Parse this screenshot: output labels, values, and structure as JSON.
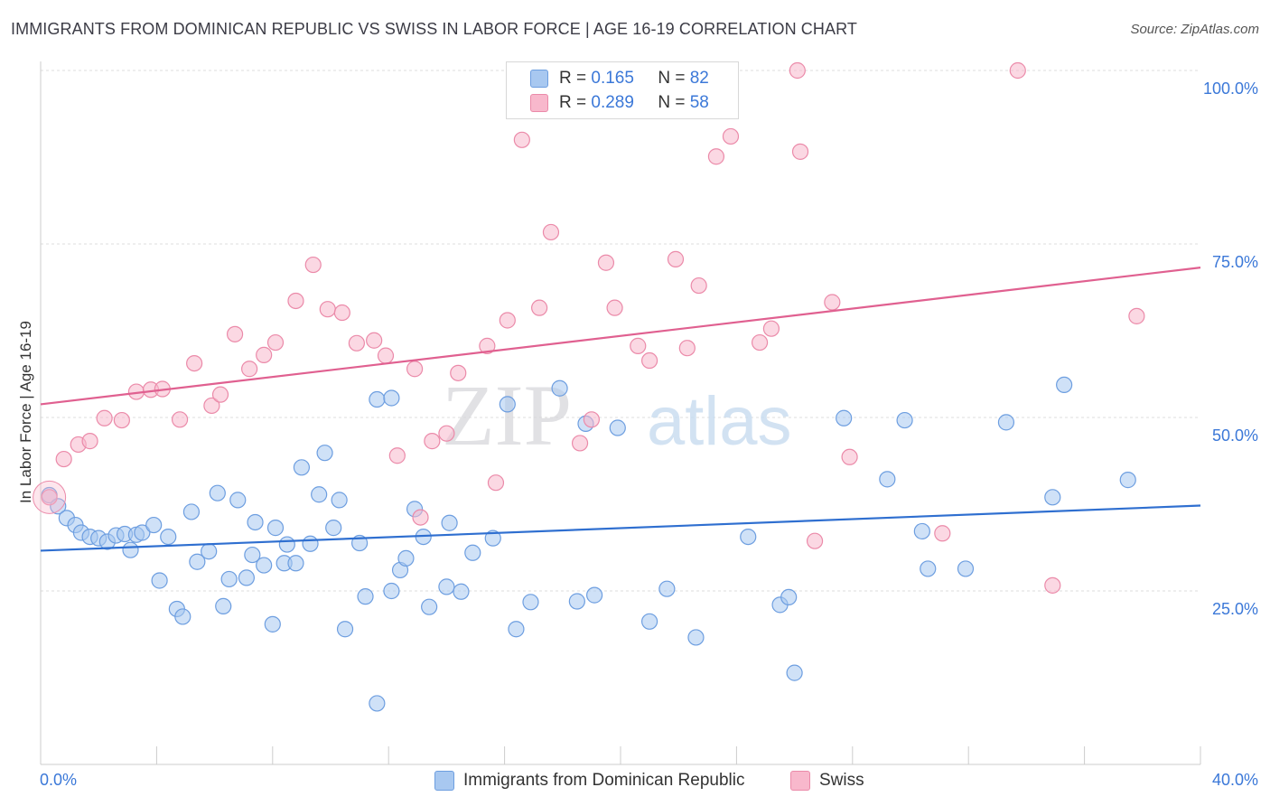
{
  "title": "IMMIGRANTS FROM DOMINICAN REPUBLIC VS SWISS IN LABOR FORCE | AGE 16-19 CORRELATION CHART",
  "source": "Source: ZipAtlas.com",
  "watermark": {
    "zip": "ZIP",
    "atlas": "atlas"
  },
  "legend_top": {
    "rows": [
      {
        "r_label": "R =",
        "r_value": "0.165",
        "n_label": "N =",
        "n_value": "82",
        "color": "#a8c8f0"
      },
      {
        "r_label": "R =",
        "r_value": "0.289",
        "n_label": "N =",
        "n_value": "58",
        "color": "#f8b8cc"
      }
    ]
  },
  "chart_data": {
    "type": "scatter",
    "title": "IMMIGRANTS FROM DOMINICAN REPUBLIC VS SWISS IN LABOR FORCE | AGE 16-19 CORRELATION CHART",
    "xlabel": "",
    "ylabel": "In Labor Force | Age 16-19",
    "xlim": [
      0,
      40
    ],
    "ylim": [
      0,
      100
    ],
    "x_tick_labels": [
      "0.0%",
      "40.0%"
    ],
    "y_tick_labels": [
      "25.0%",
      "50.0%",
      "75.0%",
      "100.0%"
    ],
    "y_ticks": [
      25,
      50,
      75,
      100
    ],
    "grid": true,
    "legend_position": "bottom",
    "series": [
      {
        "name": "Immigrants from Dominican Republic",
        "color": "#a8c8f0",
        "line_color": "#2f6fd0",
        "trend": {
          "x": [
            0,
            40
          ],
          "y": [
            30.8,
            37.3
          ]
        },
        "points": [
          [
            0.3,
            38.8
          ],
          [
            0.6,
            37.2
          ],
          [
            0.9,
            35.5
          ],
          [
            1.2,
            34.5
          ],
          [
            1.4,
            33.4
          ],
          [
            1.7,
            32.8
          ],
          [
            2.0,
            32.6
          ],
          [
            2.3,
            32.1
          ],
          [
            2.6,
            33.0
          ],
          [
            2.9,
            33.2
          ],
          [
            3.1,
            30.9
          ],
          [
            3.3,
            33.1
          ],
          [
            3.5,
            33.4
          ],
          [
            3.9,
            34.5
          ],
          [
            4.1,
            26.5
          ],
          [
            4.4,
            32.8
          ],
          [
            4.7,
            22.4
          ],
          [
            4.9,
            21.3
          ],
          [
            5.2,
            36.4
          ],
          [
            5.4,
            29.2
          ],
          [
            5.8,
            30.7
          ],
          [
            6.1,
            39.1
          ],
          [
            6.3,
            22.8
          ],
          [
            6.5,
            26.7
          ],
          [
            6.8,
            38.1
          ],
          [
            7.1,
            26.9
          ],
          [
            7.3,
            30.2
          ],
          [
            7.4,
            34.9
          ],
          [
            7.7,
            28.7
          ],
          [
            8.1,
            34.1
          ],
          [
            8.4,
            29.0
          ],
          [
            8.5,
            31.7
          ],
          [
            8.8,
            29.0
          ],
          [
            8.0,
            20.2
          ],
          [
            9.0,
            42.8
          ],
          [
            9.3,
            31.8
          ],
          [
            9.6,
            38.9
          ],
          [
            9.8,
            44.9
          ],
          [
            10.1,
            34.1
          ],
          [
            10.3,
            38.1
          ],
          [
            10.5,
            19.5
          ],
          [
            11.0,
            31.9
          ],
          [
            11.2,
            24.2
          ],
          [
            11.6,
            52.6
          ],
          [
            11.6,
            8.8
          ],
          [
            12.1,
            52.8
          ],
          [
            12.1,
            25.0
          ],
          [
            12.4,
            28.0
          ],
          [
            12.6,
            29.7
          ],
          [
            12.9,
            36.8
          ],
          [
            13.2,
            32.8
          ],
          [
            13.4,
            22.7
          ],
          [
            14.0,
            25.6
          ],
          [
            14.1,
            34.8
          ],
          [
            14.5,
            24.9
          ],
          [
            14.9,
            30.5
          ],
          [
            15.6,
            32.6
          ],
          [
            16.1,
            51.9
          ],
          [
            16.4,
            19.5
          ],
          [
            16.9,
            23.4
          ],
          [
            17.9,
            54.2
          ],
          [
            18.5,
            23.5
          ],
          [
            18.8,
            49.1
          ],
          [
            19.1,
            24.4
          ],
          [
            19.9,
            48.5
          ],
          [
            21.0,
            20.6
          ],
          [
            21.6,
            25.3
          ],
          [
            22.6,
            18.3
          ],
          [
            24.4,
            32.8
          ],
          [
            25.5,
            23.0
          ],
          [
            25.8,
            24.1
          ],
          [
            26.0,
            13.2
          ],
          [
            27.7,
            49.9
          ],
          [
            29.2,
            41.1
          ],
          [
            29.8,
            49.6
          ],
          [
            30.4,
            33.6
          ],
          [
            30.6,
            28.2
          ],
          [
            31.9,
            28.2
          ],
          [
            33.3,
            49.3
          ],
          [
            34.9,
            38.5
          ],
          [
            35.3,
            54.7
          ],
          [
            37.5,
            41.0
          ]
        ]
      },
      {
        "name": "Swiss",
        "color": "#f8b8cc",
        "line_color": "#e06090",
        "trend": {
          "x": [
            0,
            40
          ],
          "y": [
            51.9,
            71.6
          ]
        },
        "points": [
          [
            0.3,
            38.5
          ],
          [
            0.8,
            44.0
          ],
          [
            1.3,
            46.1
          ],
          [
            1.7,
            46.6
          ],
          [
            2.2,
            49.9
          ],
          [
            2.8,
            49.6
          ],
          [
            3.3,
            53.7
          ],
          [
            3.8,
            54.0
          ],
          [
            4.2,
            54.1
          ],
          [
            4.8,
            49.7
          ],
          [
            5.3,
            57.8
          ],
          [
            5.9,
            51.7
          ],
          [
            6.2,
            53.3
          ],
          [
            6.7,
            62.0
          ],
          [
            7.2,
            57.0
          ],
          [
            7.7,
            59.0
          ],
          [
            8.1,
            60.8
          ],
          [
            8.8,
            66.8
          ],
          [
            9.4,
            72.0
          ],
          [
            9.9,
            65.6
          ],
          [
            10.4,
            65.1
          ],
          [
            10.9,
            60.7
          ],
          [
            11.5,
            61.1
          ],
          [
            11.9,
            58.9
          ],
          [
            12.3,
            44.5
          ],
          [
            12.9,
            57.0
          ],
          [
            13.1,
            35.6
          ],
          [
            13.5,
            46.6
          ],
          [
            14.0,
            47.7
          ],
          [
            14.4,
            56.4
          ],
          [
            15.4,
            60.3
          ],
          [
            15.7,
            40.6
          ],
          [
            16.1,
            64.0
          ],
          [
            16.6,
            90.0
          ],
          [
            17.2,
            65.8
          ],
          [
            17.6,
            76.7
          ],
          [
            18.6,
            46.3
          ],
          [
            19.0,
            49.7
          ],
          [
            19.5,
            72.3
          ],
          [
            19.8,
            65.8
          ],
          [
            20.6,
            60.3
          ],
          [
            21.0,
            58.2
          ],
          [
            21.9,
            72.8
          ],
          [
            22.3,
            60.0
          ],
          [
            22.7,
            69.0
          ],
          [
            23.3,
            87.6
          ],
          [
            23.8,
            90.5
          ],
          [
            24.8,
            60.8
          ],
          [
            25.2,
            62.8
          ],
          [
            26.1,
            100.0
          ],
          [
            26.2,
            88.3
          ],
          [
            26.7,
            32.2
          ],
          [
            27.3,
            66.6
          ],
          [
            27.9,
            44.3
          ],
          [
            31.1,
            33.3
          ],
          [
            33.7,
            100.0
          ],
          [
            34.9,
            25.8
          ],
          [
            37.8,
            64.6
          ]
        ]
      }
    ]
  },
  "legend_bottom": {
    "items": [
      {
        "label": "Immigrants from Dominican Republic",
        "color": "#a8c8f0"
      },
      {
        "label": "Swiss",
        "color": "#f8b8cc"
      }
    ]
  }
}
